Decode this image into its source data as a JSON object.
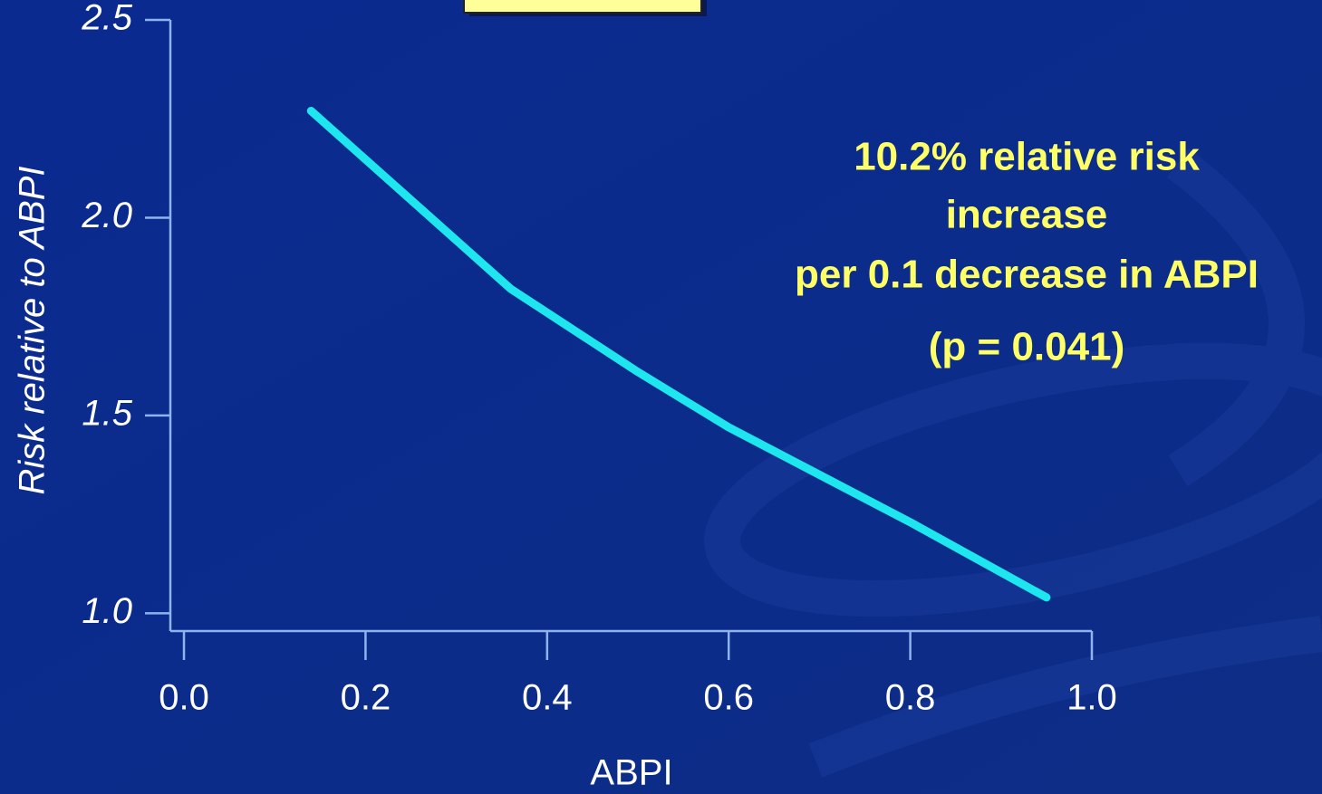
{
  "chart_data": {
    "type": "line",
    "xlabel": "ABPI",
    "ylabel": "Risk relative to ABPI",
    "annotation": [
      "10.2% relative risk",
      "increase",
      "per 0.1 decrease in ABPI",
      "(p = 0.041)"
    ],
    "x": [
      0.14,
      0.36,
      0.5,
      0.6,
      0.8,
      0.95
    ],
    "series": [
      {
        "color": "#1de6ee",
        "values": [
          2.27,
          1.82,
          1.61,
          1.47,
          1.23,
          1.04
        ]
      }
    ],
    "xlim": [
      -0.015,
      1.0
    ],
    "ylim": [
      0.955,
      2.5
    ],
    "xticks": [
      {
        "value": 0,
        "label": "0.0"
      },
      0.2,
      0.4,
      0.6,
      0.8,
      {
        "value": 1,
        "label": "1.0"
      }
    ],
    "yticks": [
      {
        "value": 1,
        "label": "1.0"
      },
      1.5,
      {
        "value": 2,
        "label": "2.0"
      },
      2.5
    ]
  }
}
